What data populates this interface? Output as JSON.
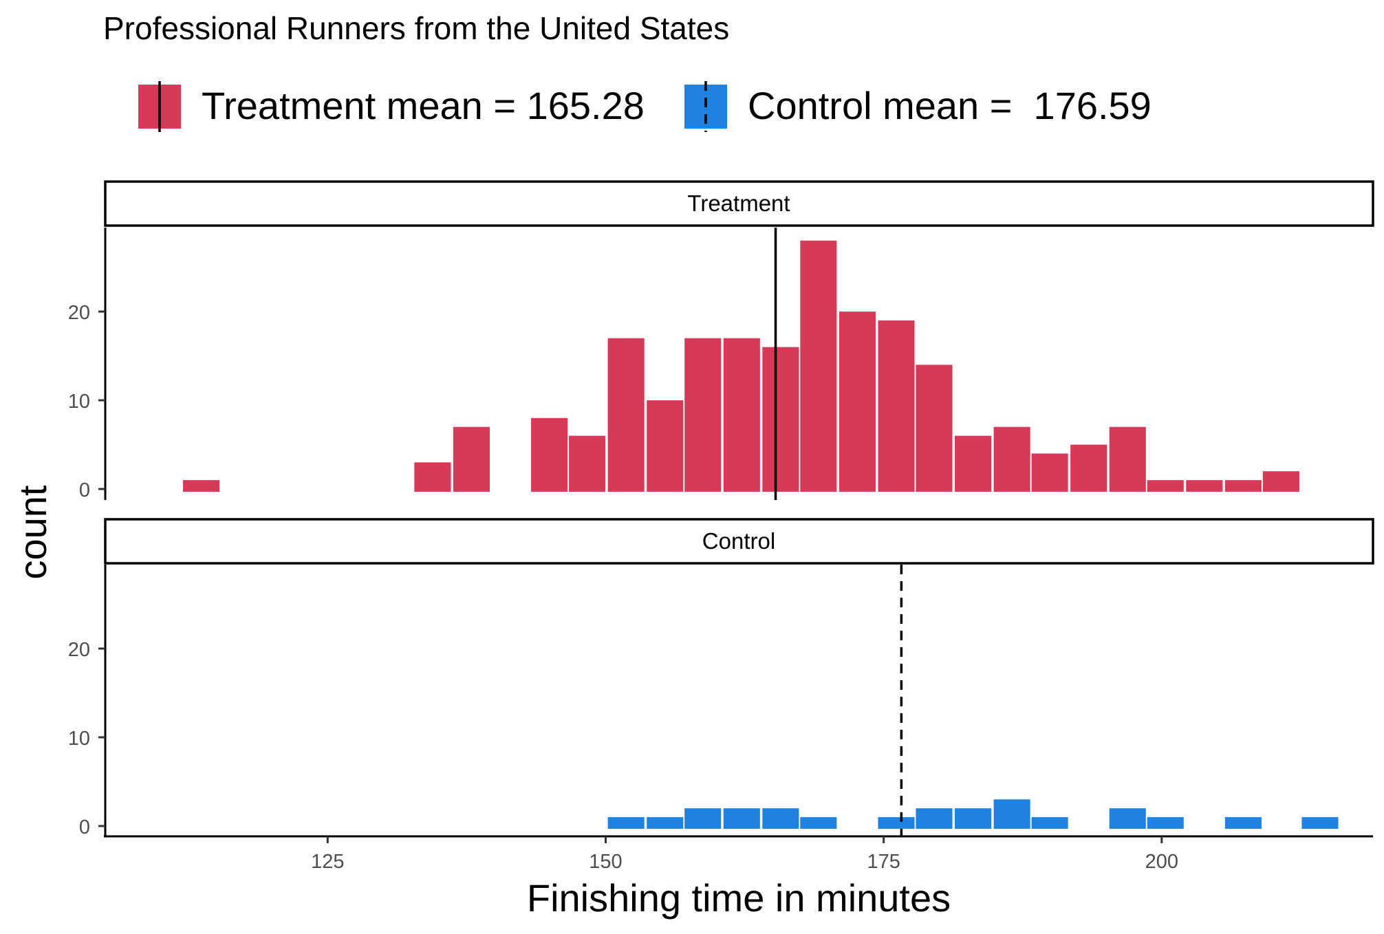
{
  "chart_data": {
    "type": "bar",
    "title": "Professional Runners from the United States",
    "xlabel": "Finishing time in minutes",
    "ylabel": "count",
    "xlim": [
      105,
      219
    ],
    "ylim": [
      0,
      30
    ],
    "x_ticks": [
      125,
      150,
      175,
      200
    ],
    "y_ticks": [
      0,
      10,
      20
    ],
    "bin_width": 3.47,
    "grid": false,
    "legend_position": "top",
    "legend": [
      {
        "label": "Treatment mean = 165.28",
        "color": "#D63A58",
        "line": "solid"
      },
      {
        "label": "Control mean =  176.59",
        "color": "#2081DE",
        "line": "dashed"
      }
    ],
    "panels": [
      {
        "name": "Treatment",
        "color": "#D63A58",
        "mean": 165.28,
        "line": "solid",
        "bins": [
          [
            111.9,
            1
          ],
          [
            132.7,
            3
          ],
          [
            136.2,
            7
          ],
          [
            143.2,
            8
          ],
          [
            146.6,
            6
          ],
          [
            150.1,
            17
          ],
          [
            153.6,
            10
          ],
          [
            157.0,
            17
          ],
          [
            160.5,
            17
          ],
          [
            164.0,
            16
          ],
          [
            167.4,
            28
          ],
          [
            170.9,
            20
          ],
          [
            174.4,
            19
          ],
          [
            177.8,
            14
          ],
          [
            181.3,
            6
          ],
          [
            184.8,
            7
          ],
          [
            188.2,
            4
          ],
          [
            191.7,
            5
          ],
          [
            195.2,
            7
          ],
          [
            198.6,
            1
          ],
          [
            202.1,
            1
          ],
          [
            205.6,
            1
          ],
          [
            209.0,
            2
          ]
        ]
      },
      {
        "name": "Control",
        "color": "#2081DE",
        "mean": 176.59,
        "line": "dashed",
        "bins": [
          [
            150.1,
            1
          ],
          [
            153.6,
            1
          ],
          [
            157.0,
            2
          ],
          [
            160.5,
            2
          ],
          [
            164.0,
            2
          ],
          [
            167.4,
            1
          ],
          [
            174.4,
            1
          ],
          [
            177.8,
            2
          ],
          [
            181.3,
            2
          ],
          [
            184.8,
            3
          ],
          [
            188.2,
            1
          ],
          [
            195.2,
            2
          ],
          [
            198.6,
            1
          ],
          [
            205.6,
            1
          ],
          [
            212.5,
            1
          ]
        ]
      }
    ]
  }
}
